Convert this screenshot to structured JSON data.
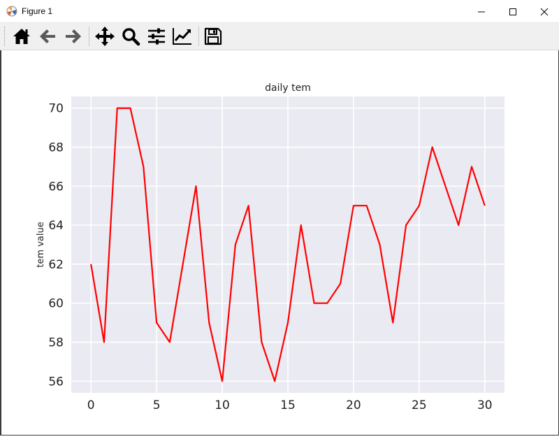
{
  "window": {
    "title": "Figure 1"
  },
  "toolbar": {
    "tools": [
      {
        "name": "home-icon"
      },
      {
        "name": "back-arrow-icon"
      },
      {
        "name": "forward-arrow-icon"
      },
      {
        "name": "pan-move-icon"
      },
      {
        "name": "zoom-magnifier-icon"
      },
      {
        "name": "configure-subplots-icon"
      },
      {
        "name": "edit-axis-icon"
      },
      {
        "name": "save-floppy-icon"
      }
    ]
  },
  "chart_data": {
    "type": "line",
    "title": "daily tem",
    "xlabel": "",
    "ylabel": "tem value",
    "x": [
      0,
      1,
      2,
      3,
      4,
      5,
      6,
      7,
      8,
      9,
      10,
      11,
      12,
      13,
      14,
      15,
      16,
      17,
      18,
      19,
      20,
      21,
      22,
      23,
      24,
      25,
      26,
      27,
      28,
      29,
      30
    ],
    "series": [
      {
        "color": "#ff0000",
        "values": [
          62,
          58,
          70,
          70,
          67,
          59,
          58,
          62,
          66,
          59,
          56,
          63,
          65,
          58,
          56,
          59,
          64,
          60,
          60,
          61,
          65,
          65,
          63,
          59,
          64,
          65,
          68,
          66,
          64,
          67,
          65
        ]
      }
    ],
    "xlim": [
      -1.5,
      31.5
    ],
    "ylim": [
      55.4,
      70.6
    ],
    "xticks": [
      0,
      5,
      10,
      15,
      20,
      25,
      30
    ],
    "yticks": [
      56,
      58,
      60,
      62,
      64,
      66,
      68,
      70
    ],
    "grid": true,
    "background": "#eaeaf2",
    "gridColor": "#ffffff"
  }
}
